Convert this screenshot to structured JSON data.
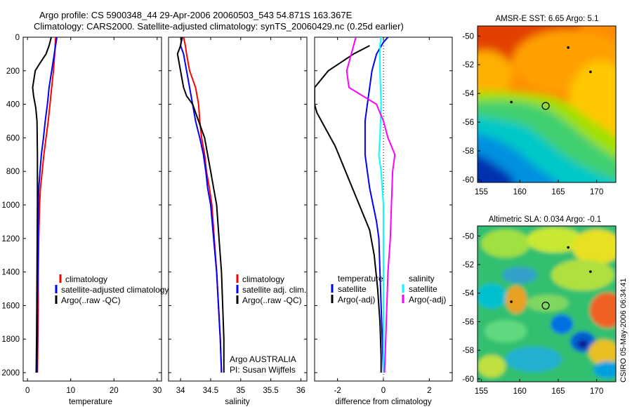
{
  "header": {
    "line1": "Argo profile: CS 5900348_44 29-Apr-2006 20060503_543 54.871S 163.367E",
    "line2": "Climatology: CARS2000. Satellite-adjusted climatology: synTS_20060429.nc (0.25d earlier)"
  },
  "colors": {
    "red": "#ff0000",
    "blue": "#0000ff",
    "black": "#000000",
    "cyan": "#00ffff",
    "magenta": "#ff00ff"
  },
  "chart_data": [
    {
      "type": "line",
      "xlabel": "temperature",
      "xlim": [
        -1,
        31
      ],
      "xticks": [
        0,
        10,
        20,
        30
      ],
      "ylim": [
        0,
        2050
      ],
      "yticks": [
        0,
        200,
        400,
        600,
        800,
        1000,
        1200,
        1400,
        1600,
        1800,
        2000
      ],
      "y_reversed": true,
      "series": [
        {
          "name": "climatology",
          "color": "red",
          "points": [
            [
              6.5,
              0
            ],
            [
              6.3,
              100
            ],
            [
              6.0,
              200
            ],
            [
              5.6,
              300
            ],
            [
              5.2,
              400
            ],
            [
              4.8,
              500
            ],
            [
              4.3,
              600
            ],
            [
              3.8,
              700
            ],
            [
              3.4,
              800
            ],
            [
              3.0,
              900
            ],
            [
              2.8,
              1000
            ],
            [
              2.6,
              1200
            ],
            [
              2.5,
              1400
            ],
            [
              2.5,
              1600
            ],
            [
              2.4,
              1800
            ],
            [
              2.3,
              2000
            ]
          ]
        },
        {
          "name": "satellite-adjusted climatology",
          "color": "blue",
          "points": [
            [
              6.8,
              0
            ],
            [
              6.2,
              100
            ],
            [
              5.6,
              200
            ],
            [
              5.0,
              300
            ],
            [
              4.6,
              400
            ],
            [
              4.1,
              500
            ],
            [
              3.7,
              600
            ],
            [
              3.2,
              700
            ],
            [
              2.9,
              800
            ],
            [
              2.6,
              900
            ],
            [
              2.5,
              1000
            ],
            [
              2.4,
              1200
            ],
            [
              2.4,
              1400
            ],
            [
              2.3,
              1600
            ],
            [
              2.3,
              1800
            ],
            [
              2.2,
              2000
            ]
          ]
        },
        {
          "name": "Argo(..raw -QC)",
          "color": "black",
          "points": [
            [
              5.5,
              0
            ],
            [
              5.0,
              50
            ],
            [
              4.3,
              100
            ],
            [
              3.0,
              150
            ],
            [
              1.8,
              200
            ],
            [
              1.2,
              300
            ],
            [
              1.4,
              350
            ],
            [
              1.9,
              420
            ],
            [
              2.2,
              500
            ],
            [
              2.3,
              700
            ],
            [
              2.3,
              1000
            ],
            [
              2.2,
              1400
            ],
            [
              2.1,
              1800
            ],
            [
              2.0,
              2000
            ]
          ]
        }
      ]
    },
    {
      "type": "line",
      "xlabel": "salinity",
      "xlim": [
        33.8,
        36.1
      ],
      "xticks": [
        34,
        34.5,
        35,
        35.5,
        36
      ],
      "xtick_labels": [
        "34",
        "34.5",
        "35",
        "35.5",
        "36"
      ],
      "ylim": [
        0,
        2050
      ],
      "y_reversed": true,
      "series": [
        {
          "name": "climatology",
          "color": "red",
          "points": [
            [
              34.05,
              0
            ],
            [
              34.08,
              50
            ],
            [
              34.1,
              100
            ],
            [
              34.15,
              200
            ],
            [
              34.25,
              300
            ],
            [
              34.3,
              400
            ],
            [
              34.32,
              500
            ],
            [
              34.35,
              600
            ],
            [
              34.4,
              700
            ],
            [
              34.43,
              800
            ],
            [
              34.48,
              900
            ],
            [
              34.52,
              1000
            ],
            [
              34.56,
              1200
            ],
            [
              34.6,
              1400
            ],
            [
              34.63,
              1600
            ],
            [
              34.66,
              1800
            ],
            [
              34.68,
              2000
            ]
          ]
        },
        {
          "name": "satellite adj. clim.",
          "color": "blue",
          "points": [
            [
              34.03,
              0
            ],
            [
              34.0,
              50
            ],
            [
              34.05,
              100
            ],
            [
              34.1,
              200
            ],
            [
              34.15,
              300
            ],
            [
              34.2,
              400
            ],
            [
              34.25,
              500
            ],
            [
              34.32,
              600
            ],
            [
              34.38,
              700
            ],
            [
              34.42,
              800
            ],
            [
              34.45,
              900
            ],
            [
              34.5,
              1000
            ],
            [
              34.55,
              1200
            ],
            [
              34.6,
              1400
            ],
            [
              34.63,
              1600
            ],
            [
              34.66,
              1800
            ],
            [
              34.68,
              2000
            ]
          ]
        },
        {
          "name": "Argo(..raw -QC)",
          "color": "black",
          "points": [
            [
              34.02,
              0
            ],
            [
              34.0,
              50
            ],
            [
              33.95,
              100
            ],
            [
              34.0,
              200
            ],
            [
              34.05,
              300
            ],
            [
              34.1,
              350
            ],
            [
              34.2,
              400
            ],
            [
              34.3,
              500
            ],
            [
              34.4,
              600
            ],
            [
              34.45,
              700
            ],
            [
              34.5,
              800
            ],
            [
              34.55,
              900
            ],
            [
              34.6,
              1000
            ],
            [
              34.64,
              1200
            ],
            [
              34.68,
              1400
            ],
            [
              34.7,
              1600
            ],
            [
              34.72,
              1800
            ],
            [
              34.72,
              2000
            ]
          ]
        }
      ],
      "annotations": [
        "Argo AUSTRALIA",
        "PI: Susan Wijffels"
      ]
    },
    {
      "type": "line",
      "xlabel": "difference from climatology",
      "xlim": [
        -3,
        3
      ],
      "xticks": [
        -2,
        0,
        2
      ],
      "ylim": [
        0,
        2050
      ],
      "y_reversed": true,
      "zero_line": "dotted",
      "legend_titles": [
        "temperature",
        "salinity"
      ],
      "series": [
        {
          "name": "satellite",
          "group": "temperature",
          "color": "blue",
          "points": [
            [
              0.2,
              0
            ],
            [
              0.0,
              30
            ],
            [
              -0.3,
              100
            ],
            [
              -0.5,
              200
            ],
            [
              -0.6,
              300
            ],
            [
              -0.7,
              400
            ],
            [
              -0.8,
              500
            ],
            [
              -0.8,
              600
            ],
            [
              -0.8,
              700
            ],
            [
              -0.7,
              800
            ],
            [
              -0.6,
              900
            ],
            [
              -0.45,
              1000
            ],
            [
              -0.3,
              1100
            ],
            [
              -0.2,
              1200
            ],
            [
              -0.15,
              1400
            ],
            [
              -0.1,
              1600
            ],
            [
              -0.05,
              1800
            ],
            [
              0.0,
              2000
            ]
          ]
        },
        {
          "name": "Argo(-adj)",
          "group": "temperature",
          "color": "black",
          "points": [
            [
              -0.6,
              50
            ],
            [
              -1.3,
              100
            ],
            [
              -2.4,
              200
            ],
            [
              -3.0,
              300
            ],
            [
              -3.0,
              400
            ],
            [
              -2.9,
              450
            ],
            [
              -2.5,
              550
            ],
            [
              -2.1,
              650
            ],
            [
              -1.8,
              750
            ],
            [
              -1.5,
              850
            ],
            [
              -1.2,
              950
            ],
            [
              -0.9,
              1050
            ],
            [
              -0.6,
              1150
            ],
            [
              -0.4,
              1300
            ],
            [
              -0.25,
              1500
            ],
            [
              -0.15,
              1700
            ],
            [
              -0.1,
              1900
            ],
            [
              -0.1,
              2000
            ]
          ]
        },
        {
          "name": "satellite",
          "group": "salinity",
          "color": "cyan",
          "points": [
            [
              -0.1,
              0
            ],
            [
              -0.15,
              50
            ],
            [
              -0.15,
              200
            ],
            [
              -0.1,
              400
            ],
            [
              -0.15,
              600
            ],
            [
              -0.2,
              700
            ],
            [
              -0.1,
              800
            ],
            [
              0.0,
              1000
            ],
            [
              0.0,
              1400
            ],
            [
              0.0,
              2000
            ]
          ]
        },
        {
          "name": "Argo(-adj)",
          "group": "salinity",
          "color": "magenta",
          "points": [
            [
              -1.2,
              0
            ],
            [
              -1.4,
              100
            ],
            [
              -1.6,
              200
            ],
            [
              -1.5,
              300
            ],
            [
              -0.9,
              350
            ],
            [
              -0.3,
              400
            ],
            [
              0.0,
              500
            ],
            [
              0.2,
              600
            ],
            [
              0.5,
              700
            ],
            [
              0.4,
              800
            ],
            [
              0.35,
              1000
            ],
            [
              0.3,
              1200
            ],
            [
              0.2,
              1400
            ],
            [
              0.15,
              1600
            ],
            [
              0.1,
              1800
            ],
            [
              0.05,
              2000
            ]
          ]
        }
      ]
    },
    {
      "type": "heatmap",
      "title": "AMSR-E SST: 6.65 Argo: 5.1",
      "xlim": [
        154.5,
        172.5
      ],
      "ylim": [
        -60.2,
        -49.3
      ],
      "xticks": [
        155,
        160,
        165,
        170
      ],
      "yticks": [
        -50,
        -52,
        -54,
        -56,
        -58,
        -60
      ],
      "colormap": "jet",
      "argo_position": [
        163.367,
        -54.871
      ],
      "floats": [
        [
          166.3,
          -50.8
        ],
        [
          169.2,
          -52.5
        ],
        [
          158.9,
          -54.6
        ]
      ]
    },
    {
      "type": "heatmap",
      "title": "Altimetric SLA: 0.034 Argo: -0.1",
      "xlim": [
        154.5,
        172.5
      ],
      "ylim": [
        -60.2,
        -49.3
      ],
      "xticks": [
        155,
        160,
        165,
        170
      ],
      "yticks": [
        -50,
        -52,
        -54,
        -56,
        -58,
        -60
      ],
      "colormap": "jet",
      "argo_position": [
        163.367,
        -54.871
      ],
      "floats": [
        [
          166.3,
          -50.8
        ],
        [
          169.2,
          -52.5
        ],
        [
          158.9,
          -54.6
        ]
      ]
    }
  ],
  "legends": {
    "p1": [
      "climatology",
      "satellite-adjusted climatology",
      "Argo(..raw -QC)"
    ],
    "p2": [
      "climatology",
      "satellite adj. clim.",
      "Argo(..raw -QC)"
    ],
    "p3_left_title": "temperature",
    "p3_left": [
      "satellite",
      "Argo(-adj)"
    ],
    "p3_right_title": "salinity",
    "p3_right": [
      "satellite",
      "Argo(-adj)"
    ]
  },
  "footer_stamp": "CSIRO 05-May-2006 06:34:41"
}
